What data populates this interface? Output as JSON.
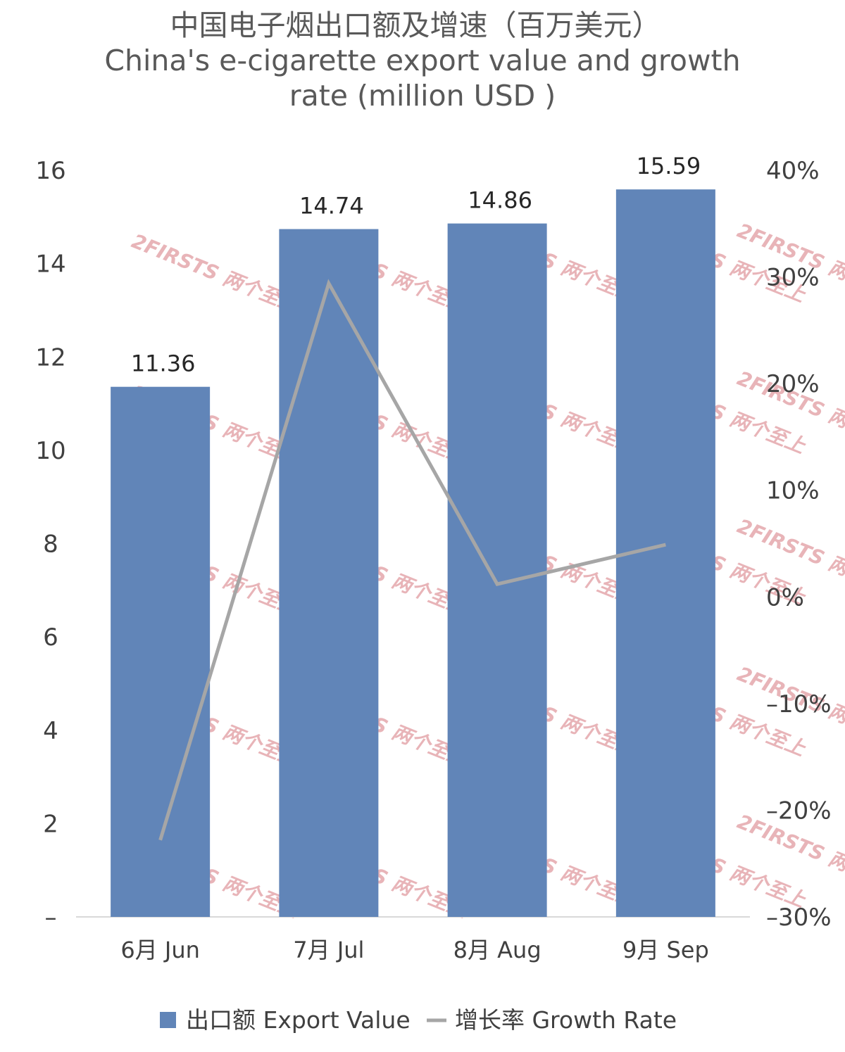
{
  "chart_data": {
    "type": "bar",
    "title": "中国电子烟出口额及增速（百万美元）",
    "subtitle": "China's e-cigarette export value and growth rate (million USD )",
    "categories": [
      "6月 Jun",
      "7月 Jul",
      "8月 Aug",
      "9月 Sep"
    ],
    "series": [
      {
        "name": "出口额 Export Value",
        "type": "bar",
        "axis": "left",
        "values": [
          11.36,
          14.74,
          14.86,
          15.59
        ],
        "data_labels": [
          "11.36",
          "14.74",
          "14.86",
          "15.59"
        ],
        "color": "#6185b8"
      },
      {
        "name": "增长率 Growth Rate",
        "type": "line",
        "axis": "right",
        "values": [
          -22.8,
          29.4,
          1.2,
          4.9
        ],
        "color": "#a6a6a6"
      }
    ],
    "y_left": {
      "ylim": [
        0,
        16
      ],
      "ticks": [
        0,
        2,
        4,
        6,
        8,
        10,
        12,
        14,
        16
      ],
      "tick_labels": [
        "–",
        "2",
        "4",
        "6",
        "8",
        "10",
        "12",
        "14",
        "16"
      ]
    },
    "y_right": {
      "ylim": [
        -30,
        40
      ],
      "ticks": [
        -30,
        -20,
        -10,
        0,
        10,
        20,
        30,
        40
      ],
      "tick_labels": [
        "–30%",
        "–20%",
        "–10%",
        "0%",
        "10%",
        "20%",
        "30%",
        "40%"
      ]
    },
    "grid": false,
    "legend_position": "bottom",
    "watermark": "2FIRSTS 两个至上"
  }
}
